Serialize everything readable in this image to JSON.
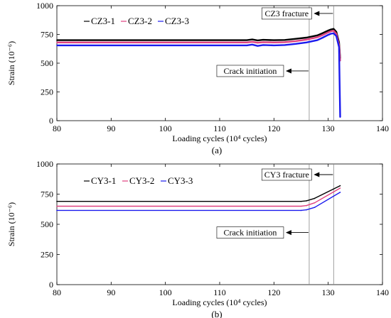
{
  "chart_data": [
    {
      "type": "line",
      "sublabel": "(a)",
      "ylabel": "Strain (10⁻⁶)",
      "xlabel": "Loading cycles (10⁴ cycles)",
      "xlim": [
        80,
        140
      ],
      "ylim": [
        0,
        1000
      ],
      "xticks": [
        80,
        90,
        100,
        110,
        120,
        130,
        140
      ],
      "yticks": [
        0,
        250,
        500,
        750,
        1000
      ],
      "legend_position": "top-left",
      "vlines": [
        126.5,
        131
      ],
      "annotations": [
        {
          "text": "CZ3 fracture",
          "x": 131,
          "y": 920
        },
        {
          "text": "Crack initiation",
          "x": 126.5,
          "y": 420
        }
      ],
      "series": [
        {
          "name": "CZ3-1",
          "color": "#000000",
          "x": [
            80,
            110,
            115,
            116,
            117,
            118,
            120,
            122,
            124,
            126,
            128,
            129,
            130,
            130.5,
            131,
            131.5,
            132,
            132.2
          ],
          "y": [
            700,
            700,
            700,
            706,
            698,
            703,
            700,
            702,
            712,
            722,
            742,
            762,
            784,
            793,
            798,
            772,
            680,
            540
          ]
        },
        {
          "name": "CZ3-2",
          "color": "#e0407f",
          "x": [
            80,
            110,
            115,
            116,
            117,
            118,
            120,
            122,
            124,
            126,
            128,
            129,
            130,
            130.5,
            131,
            131.5,
            132,
            132.2
          ],
          "y": [
            680,
            680,
            680,
            686,
            678,
            683,
            680,
            683,
            692,
            705,
            725,
            745,
            768,
            778,
            782,
            756,
            660,
            520
          ]
        },
        {
          "name": "CZ3-3",
          "color": "#1a1aee",
          "x": [
            80,
            110,
            115,
            116,
            117,
            118,
            120,
            122,
            124,
            126,
            128,
            129,
            130,
            130.5,
            131,
            131.5,
            132,
            132.2
          ],
          "y": [
            655,
            655,
            655,
            662,
            650,
            658,
            655,
            658,
            668,
            680,
            700,
            722,
            746,
            756,
            760,
            736,
            640,
            30
          ]
        }
      ]
    },
    {
      "type": "line",
      "sublabel": "(b)",
      "ylabel": "Strain (10⁻⁶)",
      "xlabel": "Loading cycles (10⁴ cycles)",
      "xlim": [
        80,
        140
      ],
      "ylim": [
        0,
        1000
      ],
      "xticks": [
        80,
        90,
        100,
        110,
        120,
        130,
        140
      ],
      "yticks": [
        0,
        250,
        500,
        750,
        1000
      ],
      "legend_position": "top-left",
      "vlines": [
        126.5,
        131
      ],
      "annotations": [
        {
          "text": "CY3 fracture",
          "x": 131,
          "y": 900
        },
        {
          "text": "Crack initiation",
          "x": 126.5,
          "y": 420
        }
      ],
      "series": [
        {
          "name": "CY3-1",
          "color": "#000000",
          "x": [
            80,
            125,
            126,
            127.5,
            132.2
          ],
          "y": [
            690,
            690,
            695,
            715,
            820
          ]
        },
        {
          "name": "CY3-2",
          "color": "#e0407f",
          "x": [
            80,
            125,
            126,
            127.5,
            132.2
          ],
          "y": [
            650,
            650,
            655,
            678,
            800
          ]
        },
        {
          "name": "CY3-3",
          "color": "#1a1aee",
          "x": [
            80,
            125,
            126,
            127.5,
            132.2
          ],
          "y": [
            615,
            615,
            620,
            640,
            765
          ]
        }
      ]
    }
  ]
}
